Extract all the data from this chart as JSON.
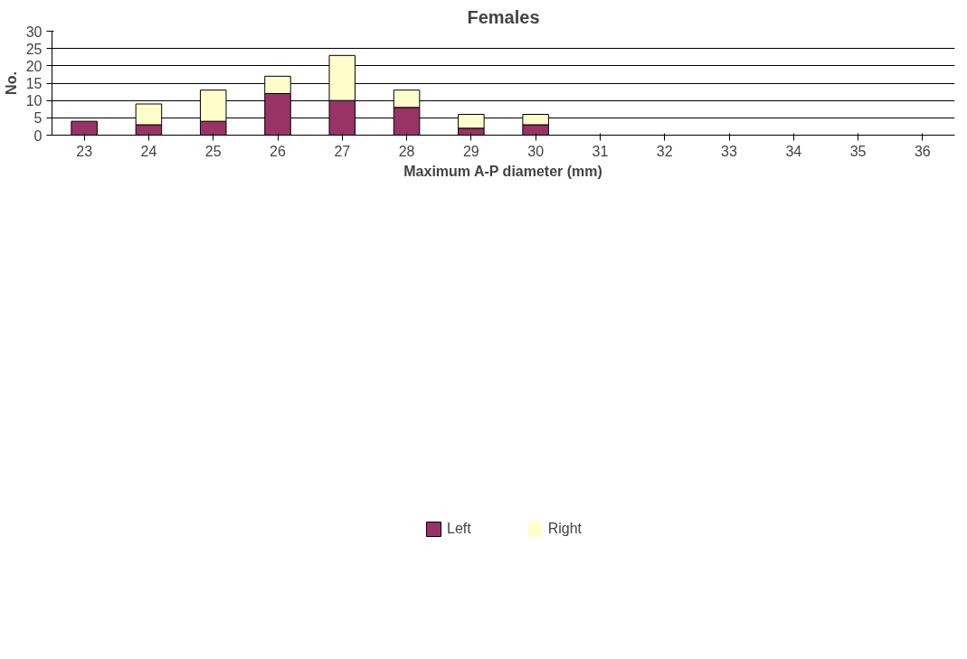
{
  "chart_data": {
    "type": "bar",
    "title": "Females",
    "xlabel": "Maximum A-P diameter (mm)",
    "ylabel": "No.",
    "categories": [
      "23",
      "24",
      "25",
      "26",
      "27",
      "28",
      "29",
      "30",
      "31",
      "32",
      "33",
      "34",
      "35",
      "36"
    ],
    "stacked": true,
    "series": [
      {
        "name": "Left",
        "color": "#993366",
        "values": [
          4,
          3,
          4,
          12,
          10,
          8,
          2,
          3,
          0,
          0,
          0,
          0,
          0,
          0
        ]
      },
      {
        "name": "Right",
        "color": "#ffffcc",
        "values": [
          0,
          6,
          9,
          5,
          13,
          5,
          4,
          3,
          0,
          0,
          0,
          0,
          0,
          0
        ]
      }
    ],
    "ylim": [
      0,
      30
    ],
    "yticks": [
      0,
      5,
      10,
      15,
      20,
      25,
      30
    ],
    "grid": "y",
    "legend": "bottom"
  }
}
